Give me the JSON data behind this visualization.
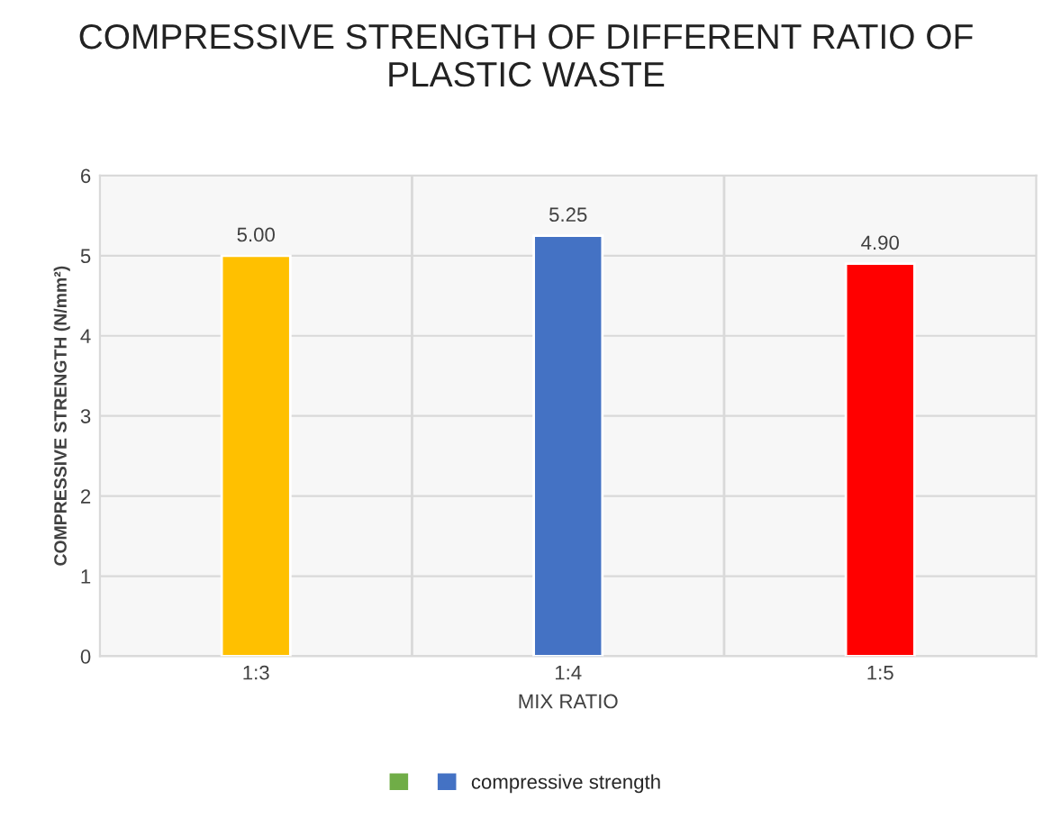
{
  "chart_data": {
    "type": "bar",
    "title": "COMPRESSIVE STRENGTH OF DIFFERENT RATIO OF PLASTIC WASTE",
    "xlabel": "MIX RATIO",
    "ylabel": "COMPRESSIVE STRENGTH (N/mm²)",
    "categories": [
      "1:3",
      "1:4",
      "1:5"
    ],
    "series": [
      {
        "color": "#70ad47",
        "values": [
          null,
          null,
          null
        ]
      },
      {
        "name": "compressive strength",
        "color": "#4472c4",
        "colors": [
          "#ffc000",
          "#4472c4",
          "#ff0000"
        ],
        "values": [
          5.0,
          5.25,
          4.9
        ],
        "value_labels": [
          "5.00",
          "5.25",
          "4.90"
        ]
      }
    ],
    "ylim": [
      0,
      6
    ],
    "yticks": [
      0,
      1,
      2,
      3,
      4,
      5,
      6
    ],
    "grid": true,
    "legend": "bottom"
  }
}
